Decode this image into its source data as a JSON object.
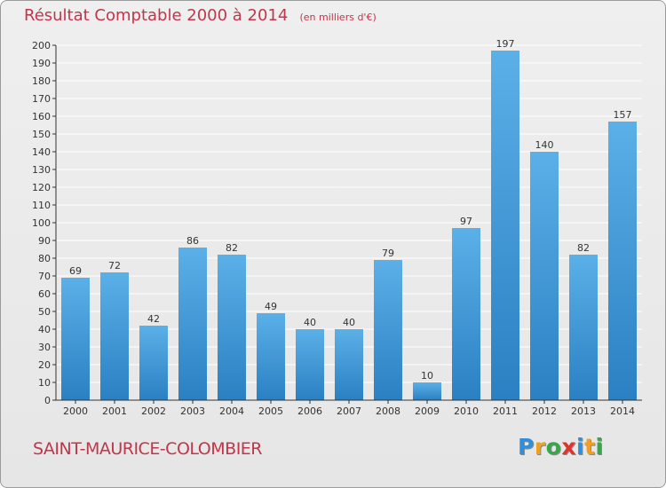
{
  "header": {
    "title": "Résultat Comptable 2000 à 2014",
    "unit": "(en milliers d'€)"
  },
  "footer": {
    "commune": "SAINT-MAURICE-COLOMBIER",
    "logo_text": "Proxiti",
    "logo_colors": [
      "#2f8fd8",
      "#f0a020",
      "#3aa64a",
      "#e0342c",
      "#2f8fd8",
      "#f0a020",
      "#3aa64a"
    ]
  },
  "colors": {
    "title": "#c0364a",
    "bar_light": "#5cb0e8",
    "bar_dark": "#2a80c2",
    "grid": "#ffffff",
    "axis": "#333333",
    "label": "#333333"
  },
  "chart_data": {
    "type": "bar",
    "title": "Résultat Comptable 2000 à 2014",
    "subtitle": "(en milliers d'€)",
    "xlabel": "",
    "ylabel": "",
    "categories": [
      "2000",
      "2001",
      "2002",
      "2003",
      "2004",
      "2005",
      "2006",
      "2007",
      "2008",
      "2009",
      "2010",
      "2011",
      "2012",
      "2013",
      "2014"
    ],
    "values": [
      69,
      72,
      42,
      86,
      82,
      49,
      40,
      40,
      79,
      10,
      97,
      197,
      140,
      82,
      157
    ],
    "ylim": [
      0,
      200
    ],
    "yticks": [
      0,
      10,
      20,
      30,
      40,
      50,
      60,
      70,
      80,
      90,
      100,
      110,
      120,
      130,
      140,
      150,
      160,
      170,
      180,
      190,
      200
    ],
    "grid": true,
    "data_labels": true
  }
}
